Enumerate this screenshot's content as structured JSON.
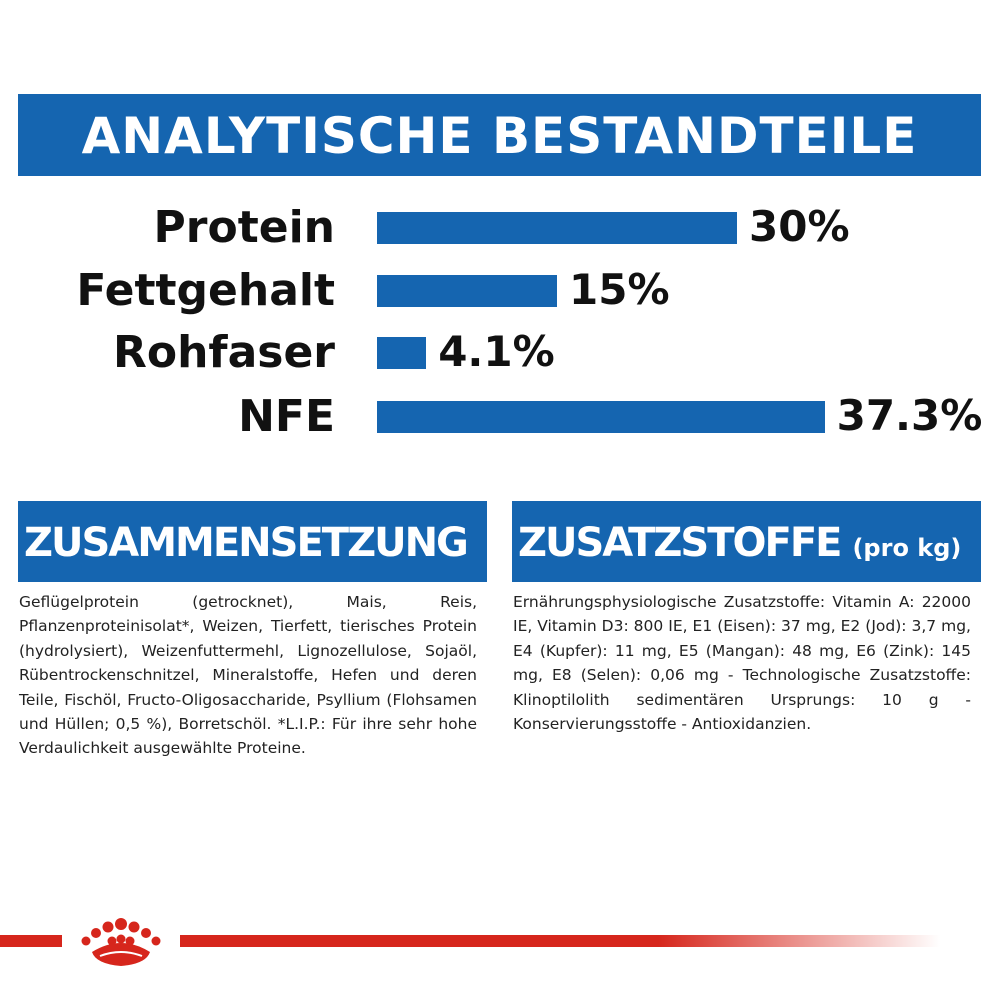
{
  "title": "ANALYTISCHE BESTANDTEILE",
  "chart_data": {
    "type": "bar",
    "orientation": "horizontal",
    "categories": [
      "Protein",
      "Fettgehalt",
      "Rohfaser",
      "NFE"
    ],
    "values": [
      30,
      15,
      4.1,
      37.3
    ],
    "value_labels": [
      "30%",
      "15%",
      "4.1%",
      "37.3%"
    ],
    "bar_color": "#1565b0"
  },
  "composition": {
    "heading": "ZUSAMMENSETZUNG",
    "text": "Geflügelprotein (getrocknet), Mais, Reis, Pflanzenproteinisolat*, Weizen, Tierfett, tierisches Protein (hydrolysiert), Weizenfuttermehl, Lignozellulose, Sojaöl, Rübentrockenschnitzel, Mineralstoffe, Hefen und deren Teile, Fischöl, Fructo-Oligosaccharide, Psyllium (Flohsamen und Hüllen; 0,5 %), Borretschöl. *L.I.P.: Für ihre sehr hohe Verdaulichkeit ausgewählte Proteine."
  },
  "additives": {
    "heading": "ZUSATZSTOFFE",
    "heading_suffix": "(pro kg)",
    "text": "Ernährungsphysiologische Zusatzstoffe: Vitamin A: 22000 IE, Vitamin D3: 800 IE, E1 (Eisen): 37 mg, E2 (Jod): 3,7 mg, E4 (Kupfer): 11 mg, E5 (Mangan): 48 mg, E6 (Zink): 145 mg, E8 (Selen): 0,06 mg - Technologische Zusatzstoffe: Klinoptilolith sedimentären Ursprungs: 10 g - Konservierungsstoffe - Antioxidanzien."
  },
  "colors": {
    "brand_blue": "#1565b0",
    "brand_red": "#d6261c"
  },
  "logo": "royal-canin-crown"
}
